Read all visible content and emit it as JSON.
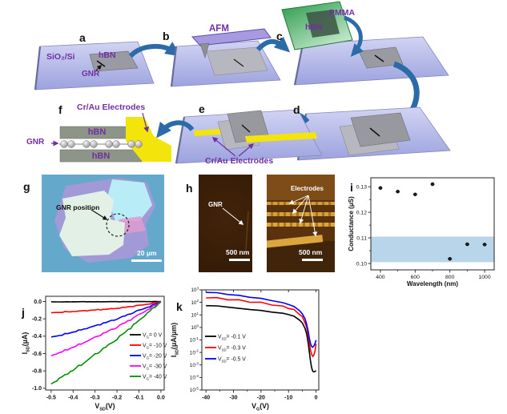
{
  "palette": {
    "label_purple": "#7030a0",
    "arrow_blue": "#2b6ca8",
    "electrode_yellow": "#f3e50c",
    "band_blue": "#b9d5ea",
    "substrate_lavender": "#b4b9e8"
  },
  "panels": {
    "a": "a",
    "b": "b",
    "c": "c",
    "d": "d",
    "e": "e",
    "f": "f",
    "g": "g",
    "h": "h",
    "i": "i",
    "j": "j",
    "k": "k"
  },
  "schematic": {
    "a": {
      "substrate": "SiO₂/Si",
      "flake": "hBN",
      "ribbon": "GNR"
    },
    "b": {
      "tool": "AFM"
    },
    "c": {
      "carrier": "PMMA",
      "flake": "hBN"
    },
    "e": {
      "electrodes": "Cr/Au Electrodes"
    },
    "f": {
      "electrodes": "Cr/Au Electrodes",
      "top": "hBN",
      "bottom": "hBN",
      "ribbon": "GNR"
    }
  },
  "micrographs": {
    "g": {
      "annotation": "GNR position",
      "scalebar": "20 μm"
    },
    "h_left": {
      "annotation": "GNR",
      "scalebar": "500 nm"
    },
    "h_right": {
      "annotation": "Electrodes",
      "scalebar": "500 nm"
    }
  },
  "chart_data": [
    {
      "panel": "i",
      "type": "scatter",
      "xlabel": "Wavelength (nm)",
      "ylabel": "Conductance (μS)",
      "xlim": [
        345,
        1055
      ],
      "ylim": [
        0.0975,
        0.1335
      ],
      "xticks": [
        400,
        600,
        800,
        1000
      ],
      "xtick_labels": [
        "400",
        "600",
        "800",
        "1000"
      ],
      "xminor": [
        500,
        700,
        900
      ],
      "yticks": [
        0.1,
        0.11,
        0.12,
        0.13
      ],
      "ytick_labels": [
        "0.10",
        "0.11",
        "0.12",
        "0.13"
      ],
      "yminor": [
        0.105,
        0.115,
        0.125
      ],
      "x": [
        400,
        500,
        600,
        700,
        800,
        900,
        1000
      ],
      "y": [
        0.1295,
        0.1281,
        0.127,
        0.131,
        0.1018,
        0.1075,
        0.1074
      ],
      "xerr": 12,
      "yerr": 0.0006,
      "band": {
        "ymin": 0.1005,
        "ymax": 0.1105,
        "color": "#b9d5ea"
      },
      "marker_color": "#1a1a1a"
    },
    {
      "panel": "j",
      "type": "line",
      "xlabel_parts": [
        "V",
        "SD",
        "(V)"
      ],
      "ylabel_parts": [
        "I",
        "SD",
        "(μA)"
      ],
      "xlim": [
        -0.525,
        0.015
      ],
      "ylim": [
        -1.02,
        0.06
      ],
      "xticks": [
        -0.5,
        -0.4,
        -0.3,
        -0.2,
        -0.1,
        0
      ],
      "xtick_labels": [
        "-0.5",
        "-0.4",
        "-0.3",
        "-0.2",
        "-0.1",
        "0.0"
      ],
      "yticks": [
        0,
        -0.2,
        -0.4,
        -0.6,
        -0.8,
        -1
      ],
      "ytick_labels": [
        "0.0",
        "-0.2",
        "-0.4",
        "-0.6",
        "-0.8",
        "-1.0"
      ],
      "x": [
        -0.5,
        -0.45,
        -0.4,
        -0.35,
        -0.3,
        -0.25,
        -0.2,
        -0.15,
        -0.1,
        -0.05,
        0
      ],
      "series": [
        {
          "label_parts": [
            "V",
            "G",
            "= 0 V"
          ],
          "color": "#000000",
          "noise": 0.0015,
          "values": [
            -0.004,
            -0.004,
            -0.003,
            -0.003,
            -0.003,
            -0.002,
            -0.002,
            -0.002,
            -0.001,
            -0.001,
            0
          ]
        },
        {
          "label_parts": [
            "V",
            "G",
            "= -10 V"
          ],
          "color": "#ff0000",
          "noise": 0.005,
          "values": [
            -0.13,
            -0.122,
            -0.115,
            -0.108,
            -0.098,
            -0.089,
            -0.078,
            -0.063,
            -0.046,
            -0.025,
            -0.001
          ]
        },
        {
          "label_parts": [
            "V",
            "G",
            "= -20 V"
          ],
          "color": "#0000ff",
          "noise": 0.008,
          "values": [
            -0.41,
            -0.384,
            -0.352,
            -0.318,
            -0.282,
            -0.242,
            -0.199,
            -0.153,
            -0.104,
            -0.054,
            -0.002
          ]
        },
        {
          "label_parts": [
            "V",
            "G",
            "= -30 V"
          ],
          "color": "#ff00ff",
          "noise": 0.01,
          "values": [
            -0.625,
            -0.578,
            -0.527,
            -0.472,
            -0.415,
            -0.355,
            -0.292,
            -0.226,
            -0.154,
            -0.079,
            -0.003
          ]
        },
        {
          "label_parts": [
            "V",
            "G",
            "= -40 V"
          ],
          "color": "#009000",
          "noise": 0.013,
          "values": [
            -0.95,
            -0.871,
            -0.789,
            -0.703,
            -0.615,
            -0.524,
            -0.429,
            -0.327,
            -0.221,
            -0.11,
            -0.005
          ]
        }
      ]
    },
    {
      "panel": "k",
      "type": "line-log",
      "xlabel_parts": [
        "V",
        "G",
        "(V)"
      ],
      "ylabel_parts": [
        "I",
        "SD",
        "(μA/μm)"
      ],
      "xlim": [
        -41.5,
        1
      ],
      "ylog_lim": [
        -5,
        3
      ],
      "xticks": [
        -40,
        -30,
        -20,
        -10,
        0
      ],
      "xtick_labels": [
        "-40",
        "-30",
        "-20",
        "-10",
        "0"
      ],
      "xminor": [
        -35,
        -25,
        -15,
        -5
      ],
      "ytick_exponents": [
        3,
        2,
        1,
        0,
        -1,
        -2,
        -3,
        -4,
        -5
      ],
      "series": [
        {
          "label_parts": [
            "V",
            "SD",
            "= -0.1 V"
          ],
          "color": "#000000",
          "points": [
            [
              -40,
              55
            ],
            [
              -36,
              52
            ],
            [
              -32,
              42
            ],
            [
              -28,
              33
            ],
            [
              -24,
              27
            ],
            [
              -20,
              22
            ],
            [
              -16,
              17
            ],
            [
              -12,
              13
            ],
            [
              -10,
              11
            ],
            [
              -8,
              7.5
            ],
            [
              -6,
              4
            ],
            [
              -5,
              2.2
            ],
            [
              -4,
              0.9
            ],
            [
              -3.4,
              0.3
            ],
            [
              -2.8,
              0.05
            ],
            [
              -2.4,
              0.01
            ],
            [
              -2,
              0.002
            ],
            [
              -1.6,
              0.0006
            ],
            [
              -1.2,
              0.00032
            ],
            [
              -0.8,
              0.00028
            ],
            [
              -0.4,
              0.0003
            ],
            [
              0,
              0.00035
            ]
          ]
        },
        {
          "label_parts": [
            "V",
            "SD",
            "= -0.3 V"
          ],
          "color": "#ff0000",
          "points": [
            [
              -40,
              230
            ],
            [
              -36,
              215
            ],
            [
              -32,
              180
            ],
            [
              -28,
              145
            ],
            [
              -24,
              115
            ],
            [
              -20,
              92
            ],
            [
              -16,
              68
            ],
            [
              -12,
              46
            ],
            [
              -10,
              36
            ],
            [
              -8,
              24
            ],
            [
              -6,
              12
            ],
            [
              -5,
              6.5
            ],
            [
              -4,
              2.6
            ],
            [
              -3.4,
              0.9
            ],
            [
              -2.8,
              0.2
            ],
            [
              -2.4,
              0.05
            ],
            [
              -2,
              0.015
            ],
            [
              -1.6,
              0.007
            ],
            [
              -1.2,
              0.0048
            ],
            [
              -0.8,
              0.006
            ],
            [
              -0.4,
              0.012
            ],
            [
              0,
              0.05
            ]
          ]
        },
        {
          "label_parts": [
            "V",
            "SD",
            "= -0.5 V"
          ],
          "color": "#0000ff",
          "points": [
            [
              -40,
              620
            ],
            [
              -36,
              560
            ],
            [
              -32,
              450
            ],
            [
              -28,
              350
            ],
            [
              -24,
              265
            ],
            [
              -20,
              200
            ],
            [
              -16,
              142
            ],
            [
              -12,
              92
            ],
            [
              -10,
              70
            ],
            [
              -8,
              46
            ],
            [
              -6,
              22
            ],
            [
              -5,
              12
            ],
            [
              -4,
              5
            ],
            [
              -3.4,
              1.8
            ],
            [
              -2.8,
              0.45
            ],
            [
              -2.4,
              0.13
            ],
            [
              -2,
              0.05
            ],
            [
              -1.6,
              0.03
            ],
            [
              -1.2,
              0.026
            ],
            [
              -0.8,
              0.032
            ],
            [
              -0.4,
              0.05
            ],
            [
              0,
              0.095
            ]
          ]
        }
      ]
    }
  ]
}
